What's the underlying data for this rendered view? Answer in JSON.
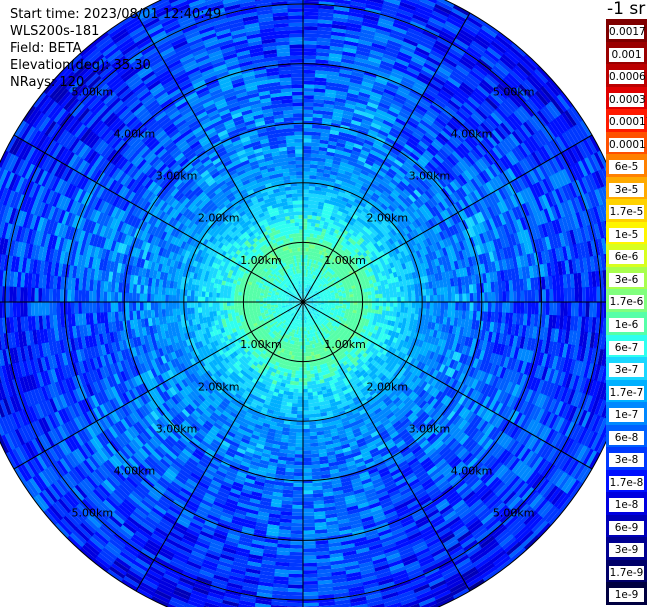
{
  "header": {
    "start_time": "Start time: 2023/08/01 12:40:49",
    "instrument": "WLS200s-181",
    "field": "Field: BETA",
    "elevation": "Elevation(deg): 35.30",
    "nrays": "NRays: 120"
  },
  "colorbar": {
    "unit_label": "-1 sr",
    "labels": [
      "0.0017",
      "0.001",
      "0.0006",
      "0.0003",
      "0.00017",
      "0.0001",
      "6e-5",
      "3e-5",
      "1.7e-5",
      "1e-5",
      "6e-6",
      "3e-6",
      "1.7e-6",
      "1e-6",
      "6e-7",
      "3e-7",
      "1.7e-7",
      "1e-7",
      "6e-8",
      "3e-8",
      "1.7e-8",
      "1e-8",
      "6e-9",
      "3e-9",
      "1.7e-9",
      "1e-9"
    ],
    "colors": [
      "#7f0000",
      "#9a0000",
      "#bb0000",
      "#e00000",
      "#ff1a00",
      "#ff5000",
      "#ff8000",
      "#ffaa00",
      "#ffd200",
      "#fff500",
      "#d8ff1e",
      "#a8ff4e",
      "#80ff7e",
      "#56ffa8",
      "#2ffff0",
      "#1ad7ff",
      "#00b0ff",
      "#0088ff",
      "#0060ff",
      "#0038ff",
      "#0010ff",
      "#0000e0",
      "#0000b8",
      "#000090",
      "#000068",
      "#000040"
    ]
  },
  "chart_data": {
    "type": "heatmap",
    "projection": "polar PPI",
    "variable": "BETA",
    "range_rings_km": [
      1,
      2,
      3,
      4,
      5
    ],
    "ring_labels": [
      "1.00km",
      "2.00km",
      "3.00km",
      "4.00km",
      "5.00km"
    ],
    "radial_lines_deg": [
      0,
      30,
      60,
      90,
      120,
      150,
      180,
      210,
      240,
      270,
      300,
      330
    ],
    "max_range_km": 5.6,
    "n_rays": 120,
    "value_scale": "log",
    "value_range": [
      1e-09,
      0.0017
    ],
    "typical_values": [
      {
        "range_km": 0.5,
        "value": "3e-7"
      },
      {
        "range_km": 1.0,
        "value": "1e-6"
      },
      {
        "range_km": 2.0,
        "value": "2e-7"
      },
      {
        "range_km": 3.0,
        "value": "1e-7"
      },
      {
        "range_km": 4.0,
        "value": "6e-8"
      },
      {
        "range_km": 5.0,
        "value": "3e-8"
      }
    ]
  }
}
